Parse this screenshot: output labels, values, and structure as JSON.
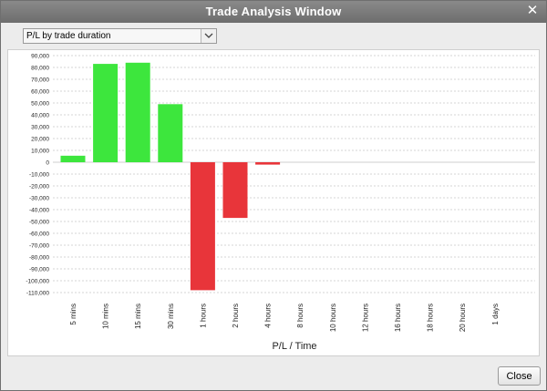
{
  "window": {
    "title": "Trade Analysis Window",
    "close_glyph": "✕"
  },
  "dropdown": {
    "value": "P/L by trade duration"
  },
  "footer": {
    "close_label": "Close"
  },
  "colors": {
    "positive": "#3de63d",
    "negative": "#e8353a",
    "gridline": "#d4d4d4"
  },
  "chart_data": {
    "type": "bar",
    "title": "",
    "xlabel": "P/L / Time",
    "ylabel": "",
    "ylim": [
      -110000,
      90000
    ],
    "yticks": [
      90000,
      80000,
      70000,
      60000,
      50000,
      40000,
      30000,
      20000,
      10000,
      0,
      -10000,
      -20000,
      -30000,
      -40000,
      -50000,
      -60000,
      -70000,
      -80000,
      -90000,
      -100000,
      -110000
    ],
    "ytick_labels": [
      "90,000",
      "80,000",
      "70,000",
      "60,000",
      "50,000",
      "40,000",
      "30,000",
      "20,000",
      "10,000",
      "0",
      "-10,000",
      "-20,000",
      "-30,000",
      "-40,000",
      "-50,000",
      "-60,000",
      "-70,000",
      "-80,000",
      "-90,000",
      "-100,000",
      "-110,000"
    ],
    "categories": [
      "5 mins",
      "10 mins",
      "15 mins",
      "30 mins",
      "1 hours",
      "2 hours",
      "4 hours",
      "8 hours",
      "10 hours",
      "12 hours",
      "16 hours",
      "18 hours",
      "20 hours",
      "1 days"
    ],
    "values": [
      5500,
      83000,
      84000,
      49000,
      -108000,
      -47000,
      -2000,
      0,
      0,
      0,
      0,
      0,
      0,
      0
    ],
    "grid": true,
    "legend": "none"
  }
}
